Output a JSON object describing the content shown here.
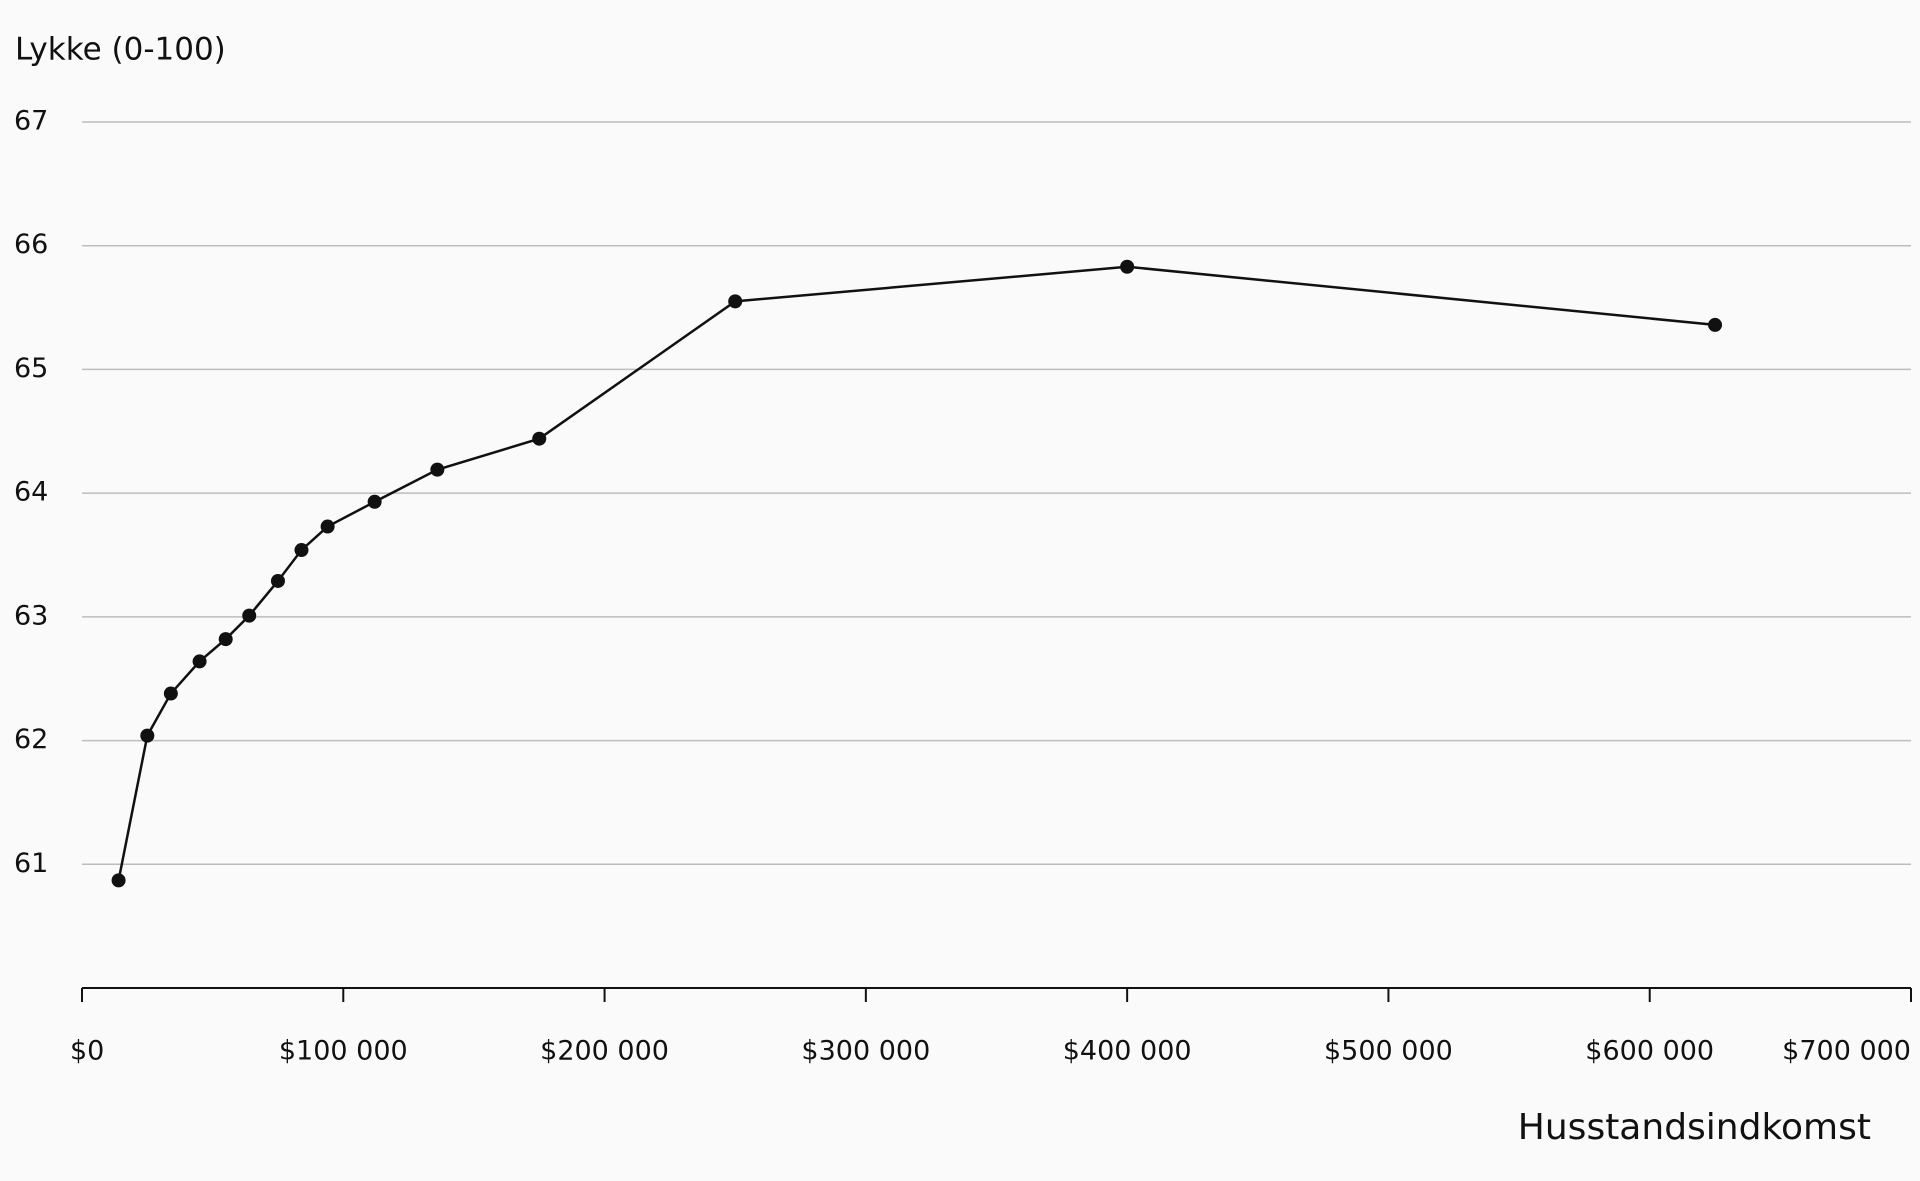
{
  "chart_data": {
    "type": "line",
    "y_axis_label": "Lykke (0-100)",
    "x_axis_label": "Husstandsindkomst",
    "x": [
      14000,
      25000,
      34000,
      45000,
      55000,
      64000,
      75000,
      84000,
      94000,
      112000,
      136000,
      175000,
      250000,
      400000,
      625000
    ],
    "series": [
      {
        "name": "Lykke",
        "color": "#111111",
        "values": [
          60.87,
          62.04,
          62.38,
          62.64,
          62.82,
          63.01,
          63.29,
          63.54,
          63.73,
          63.93,
          64.19,
          64.44,
          65.55,
          65.83,
          65.36
        ]
      }
    ],
    "xlim": [
      0,
      700000
    ],
    "xticks": [
      {
        "value": 0,
        "label": "$0"
      },
      {
        "value": 100000,
        "label": "$100 000"
      },
      {
        "value": 200000,
        "label": "$200 000"
      },
      {
        "value": 300000,
        "label": "$300 000"
      },
      {
        "value": 400000,
        "label": "$400 000"
      },
      {
        "value": 500000,
        "label": "$500 000"
      },
      {
        "value": 600000,
        "label": "$600 000"
      },
      {
        "value": 700000,
        "label": "$700 000"
      }
    ],
    "ylim": [
      60,
      67
    ],
    "yticks": [
      61,
      62,
      63,
      64,
      65,
      66,
      67
    ],
    "grid": true,
    "markers": true
  }
}
